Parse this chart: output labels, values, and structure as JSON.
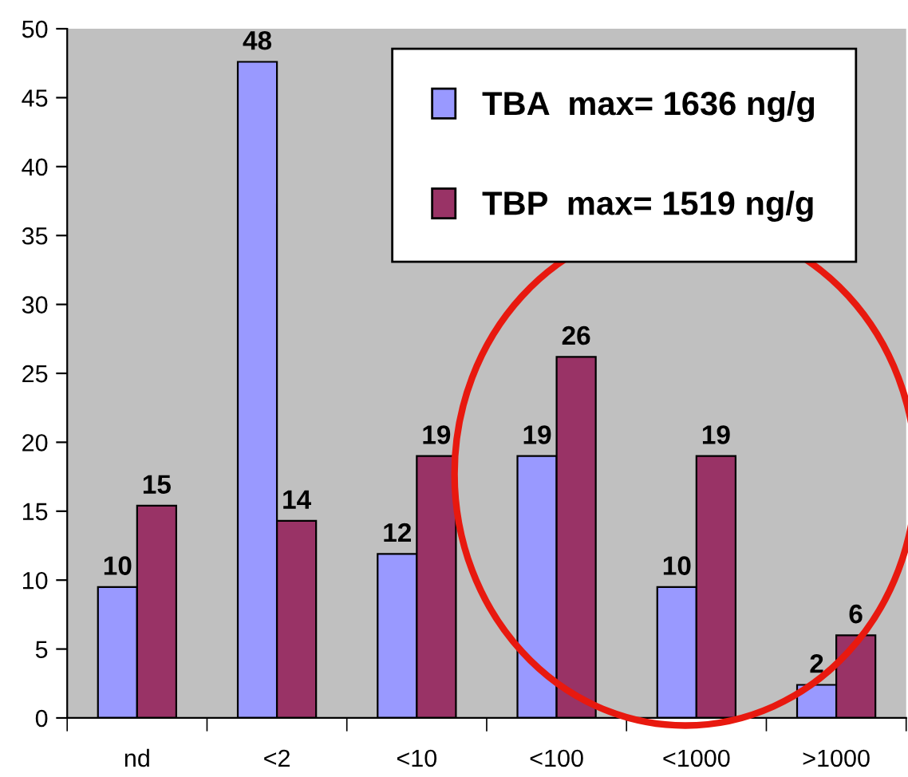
{
  "chart_data": {
    "type": "bar",
    "categories": [
      "nd",
      "<2",
      "<10",
      "<100",
      "<1000",
      ">1000"
    ],
    "series": [
      {
        "name": "TBA  max= 1636 ng/g",
        "color": "#9999ff",
        "values": [
          9.5,
          47.6,
          11.9,
          19.0,
          9.5,
          2.4
        ],
        "value_labels": [
          "10",
          "48",
          "12",
          "19",
          "10",
          "2"
        ]
      },
      {
        "name": "TBP  max= 1519 ng/g",
        "color": "#993366",
        "values": [
          15.4,
          14.3,
          19.0,
          26.2,
          19.0,
          6.0
        ],
        "value_labels": [
          "15",
          "14",
          "19",
          "26",
          "19",
          "6"
        ]
      }
    ],
    "ylim": [
      0,
      50
    ],
    "yticks": [
      0,
      5,
      10,
      15,
      20,
      25,
      30,
      35,
      40,
      45,
      50
    ],
    "grid": false,
    "legend": "top right"
  }
}
